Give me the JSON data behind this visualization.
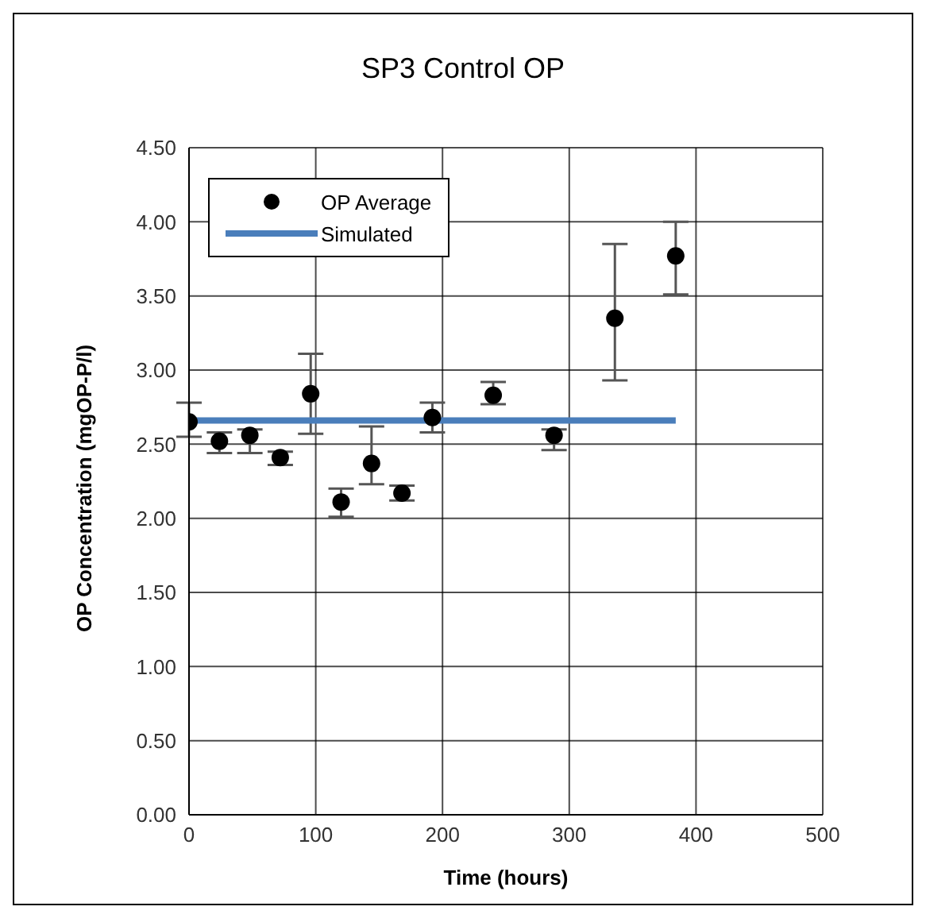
{
  "chart_data": {
    "type": "scatter",
    "title": "SP3 Control OP",
    "xlabel": "Time (hours)",
    "ylabel": "OP Concentration (mgOP-P/l)",
    "xlim": [
      0,
      500
    ],
    "xticks": [
      0,
      100,
      200,
      300,
      400,
      500
    ],
    "ylim": [
      0,
      4.5
    ],
    "yticks": [
      {
        "value": 0,
        "label": "0.00"
      },
      {
        "value": 0.5,
        "label": "0.50"
      },
      {
        "value": 1,
        "label": "1.00"
      },
      {
        "value": 1.5,
        "label": "1.50"
      },
      {
        "value": 2,
        "label": "2.00"
      },
      {
        "value": 2.5,
        "label": "2.50"
      },
      {
        "value": 3,
        "label": "3.00"
      },
      {
        "value": 3.5,
        "label": "3.50"
      },
      {
        "value": 4,
        "label": "4.00"
      },
      {
        "value": 4.5,
        "label": "4.50"
      }
    ],
    "grid": true,
    "legend": "top left",
    "series": [
      {
        "name": "OP Average",
        "marker": "circle",
        "color": "#000000",
        "x": [
          0,
          24,
          48,
          72,
          96,
          120,
          144,
          168,
          192,
          240,
          288,
          336,
          384
        ],
        "values": [
          2.65,
          2.52,
          2.56,
          2.41,
          2.84,
          2.11,
          2.37,
          2.17,
          2.68,
          2.83,
          2.56,
          3.35,
          3.77
        ],
        "errors": [
          [
            2.55,
            2.78
          ],
          [
            2.44,
            2.58
          ],
          [
            2.44,
            2.6
          ],
          [
            2.36,
            2.45
          ],
          [
            2.57,
            3.11
          ],
          [
            2.01,
            2.2
          ],
          [
            2.23,
            2.62
          ],
          [
            2.12,
            2.22
          ],
          [
            2.58,
            2.78
          ],
          [
            2.77,
            2.92
          ],
          [
            2.46,
            2.6
          ],
          [
            2.93,
            3.85
          ],
          [
            3.51,
            4.0
          ]
        ]
      },
      {
        "name": "Simulated",
        "type": "line",
        "color": "#4a7ebb",
        "x": [
          0,
          384
        ],
        "values": [
          2.66,
          2.66
        ]
      }
    ]
  }
}
